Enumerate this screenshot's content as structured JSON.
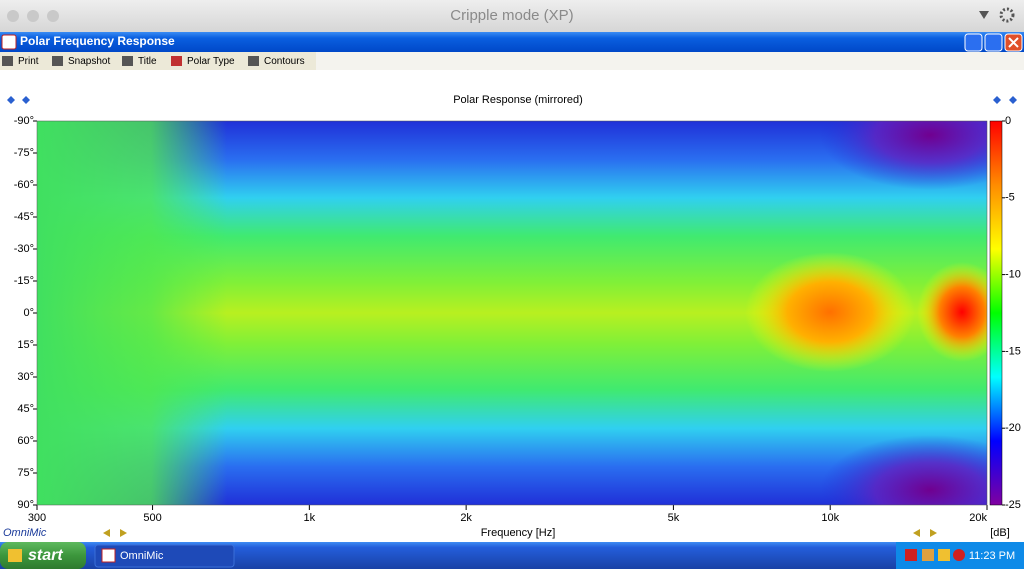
{
  "mac_title": "Cripple mode (XP)",
  "window_title": "Polar Frequency Response",
  "toolbar": [
    "Print",
    "Snapshot",
    "Title",
    "Polar Type",
    "Contours"
  ],
  "brand": "OmniMic",
  "chart_data": {
    "type": "heatmap",
    "title": "Polar Response (mirrored)",
    "xlabel": "Frequency [Hz]",
    "colorbar_label": "[dB]",
    "xscale": "log",
    "xlim": [
      300,
      20000
    ],
    "xticks": [
      300,
      500,
      {
        "value": 1000,
        "label": "1k"
      },
      {
        "value": 2000,
        "label": "2k"
      },
      {
        "value": 5000,
        "label": "5k"
      },
      {
        "value": 10000,
        "label": "10k"
      },
      {
        "value": 20000,
        "label": "20k"
      }
    ],
    "ylim": [
      -90,
      90
    ],
    "yticks": [
      {
        "value": -90,
        "label": "-90°"
      },
      {
        "value": -75,
        "label": "-75°"
      },
      {
        "value": -60,
        "label": "-60°"
      },
      {
        "value": -45,
        "label": "-45°"
      },
      {
        "value": -30,
        "label": "-30°"
      },
      {
        "value": -15,
        "label": "-15°"
      },
      {
        "value": 0,
        "label": "0°"
      },
      {
        "value": 15,
        "label": "15°"
      },
      {
        "value": 30,
        "label": "30°"
      },
      {
        "value": 45,
        "label": "45°"
      },
      {
        "value": 60,
        "label": "60°"
      },
      {
        "value": 75,
        "label": "75°"
      },
      {
        "value": 90,
        "label": "90°"
      }
    ],
    "clim": [
      -25,
      0
    ],
    "cticks": [
      0,
      -5,
      -10,
      -15,
      -20,
      -25
    ],
    "colormap": [
      "#ff0000",
      "#ff8c00",
      "#ffff00",
      "#00ff00",
      "#00ffff",
      "#0000ff",
      "#8000a0"
    ]
  },
  "taskbar": {
    "start": "start",
    "app": "OmniMic",
    "time": "11:23 PM"
  }
}
